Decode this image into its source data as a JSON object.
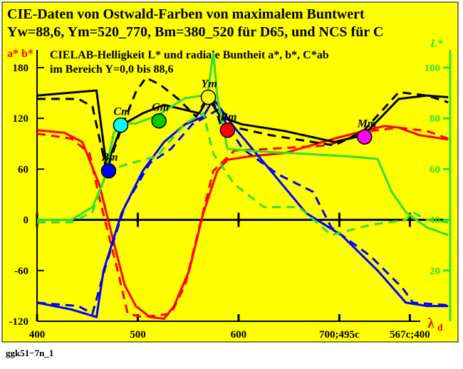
{
  "chart_data": {
    "type": "line",
    "title": "CIE-Daten von  Ostwald-Farben von maximalem Buntwert",
    "subtitle": "Yw=88,6, Ym=520_770, Bm=380_520 für D65, und NCS für C",
    "annotations": [
      "CIELAB-Helligkeit L* und radiale Buntheit a*, b*, C*ab",
      "im Bereich Y=0,0 bis 88,6"
    ],
    "y_label": "a* b*",
    "y2_label": "L*",
    "x_label": "λ",
    "x_label_sub": "d",
    "footer": "ggk51−7n_1",
    "xlim": [
      400,
      810
    ],
    "xticks": [
      400,
      500,
      600,
      {
        "value": 700,
        "label": "700;495c"
      },
      {
        "value": 770,
        "label": "567c;400"
      }
    ],
    "ylim": [
      -120,
      201
    ],
    "yticks": [
      -120,
      -60,
      0,
      60,
      120,
      180
    ],
    "y2lim": [
      0,
      107
    ],
    "y2ticks": [
      20,
      40,
      60,
      80,
      100
    ],
    "series": [
      {
        "color": "#ff0000",
        "dash": false,
        "x": [
          400,
          427,
          445,
          462,
          476,
          487,
          498,
          512,
          526,
          536,
          551,
          565,
          579,
          589,
          611,
          646,
          695,
          724,
          745,
          759,
          780,
          808
        ],
        "values": [
          106,
          103,
          92,
          41,
          -26,
          -77,
          -102,
          -115,
          -117,
          -102,
          -60,
          8,
          58,
          71,
          75,
          79,
          96,
          105,
          111,
          109,
          100,
          95
        ]
      },
      {
        "color": "#ff0000",
        "dash": true,
        "x": [
          400,
          434,
          452,
          462,
          480,
          490,
          505,
          533,
          547,
          561,
          575,
          596,
          632,
          688,
          731,
          759,
          787,
          808
        ],
        "values": [
          102,
          96,
          79,
          25,
          -60,
          -111,
          -115,
          -111,
          -77,
          -9,
          58,
          82,
          84,
          88,
          105,
          109,
          105,
          96
        ]
      },
      {
        "color": "#0000ff",
        "dash": false,
        "x": [
          400,
          434,
          459,
          466,
          484,
          505,
          526,
          547,
          565,
          575,
          596,
          632,
          667,
          702,
          738,
          766,
          787,
          808
        ],
        "values": [
          -98,
          -106,
          -115,
          -60,
          8,
          58,
          92,
          113,
          122,
          143,
          109,
          58,
          8,
          -18,
          -60,
          -98,
          -102,
          -102
        ]
      },
      {
        "color": "#0000ff",
        "dash": true,
        "x": [
          400,
          441,
          455,
          469,
          487,
          512,
          533,
          554,
          568,
          579,
          604,
          639,
          674,
          692,
          731,
          763,
          773,
          808
        ],
        "values": [
          -98,
          -102,
          -111,
          -51,
          16,
          67,
          84,
          113,
          122,
          130,
          84,
          54,
          33,
          -9,
          -43,
          -81,
          -98,
          -101
        ]
      },
      {
        "color": "#000000",
        "dash": false,
        "x": [
          400,
          459,
          469,
          484,
          505,
          526,
          547,
          561,
          570,
          582,
          603,
          646,
          695,
          724,
          759,
          787,
          808
        ],
        "values": [
          147,
          153,
          63,
          112,
          126,
          136,
          130,
          126,
          144,
          122,
          113,
          105,
          92,
          100,
          143,
          147,
          145
        ]
      },
      {
        "color": "#000000",
        "dash": true,
        "x": [
          400,
          441,
          455,
          469,
          484,
          498,
          508,
          522,
          540,
          558,
          572,
          582,
          632,
          695,
          724,
          759,
          787,
          808
        ],
        "values": [
          143,
          143,
          134,
          58,
          109,
          151,
          168,
          160,
          143,
          122,
          151,
          113,
          100,
          88,
          105,
          151,
          147,
          139
        ]
      },
      {
        "color": "#33dd33",
        "dash": false,
        "axis": "y2",
        "x": [
          400,
          434,
          455,
          466,
          476,
          484,
          498,
          519,
          547,
          565,
          568,
          575,
          579,
          589,
          618,
          667,
          709,
          738,
          752,
          766,
          787,
          808
        ],
        "values": [
          40,
          40,
          45,
          55,
          74,
          78,
          78,
          81,
          88,
          89,
          86,
          106,
          88,
          68,
          67,
          66,
          65,
          64,
          51,
          43,
          37,
          34
        ]
      },
      {
        "color": "#33dd33",
        "dash": true,
        "axis": "y2",
        "x": [
          400,
          434,
          455,
          469,
          490,
          519,
          547,
          565,
          575,
          596,
          625,
          660,
          692,
          731,
          766,
          773,
          787,
          808
        ],
        "values": [
          39,
          39,
          43,
          59,
          62,
          65,
          78,
          82,
          66,
          54,
          45,
          45,
          34,
          38,
          40,
          43,
          40,
          39
        ]
      }
    ],
    "points": [
      {
        "label": "Bm",
        "x": 471,
        "y": 58,
        "color": "#0000ff"
      },
      {
        "label": "Cm",
        "x": 483,
        "y": 112,
        "color": "#00ffff"
      },
      {
        "label": "Gm",
        "x": 521,
        "y": 117,
        "color": "#00cc00"
      },
      {
        "label": "Ym",
        "x": 570,
        "y": 145,
        "color": "#ffff00"
      },
      {
        "label": "Rm",
        "x": 589,
        "y": 106,
        "color": "#ff0000"
      },
      {
        "label": "Mm",
        "x": 725,
        "y": 98,
        "color": "#ff00ff"
      }
    ]
  }
}
